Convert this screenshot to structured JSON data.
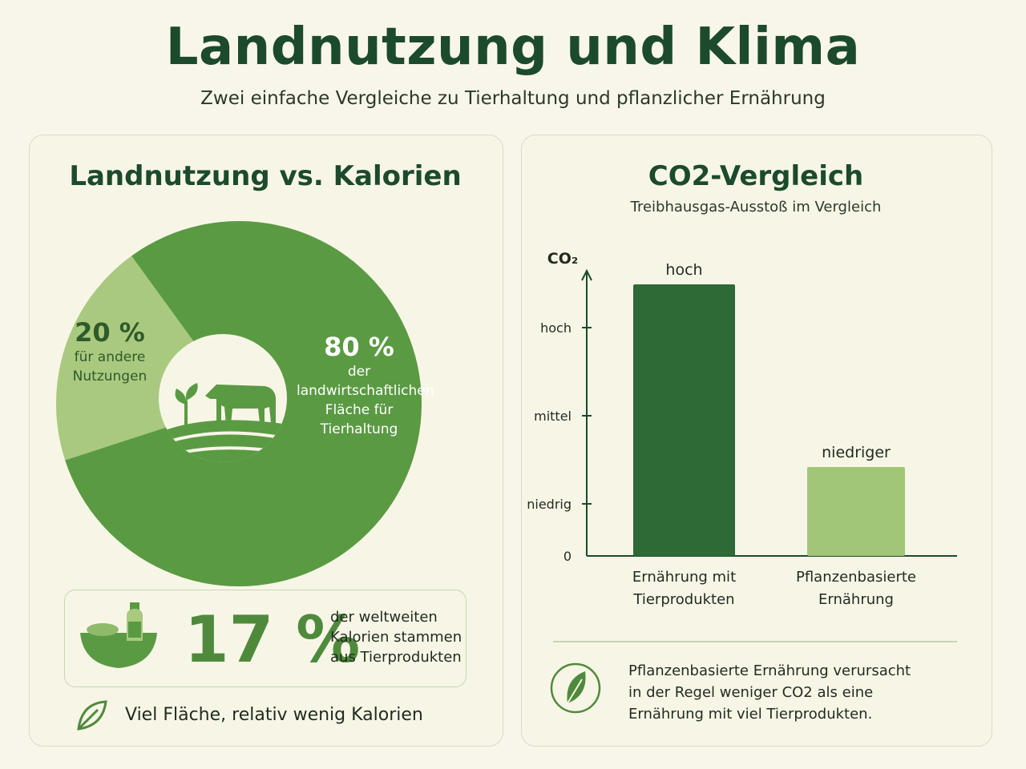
{
  "title": "Landnutzung und Klima",
  "subtitle": "Zwei einfache Vergleiche zu Tierhaltung und pflanzlicher Ernährung",
  "left": {
    "title": "Landnutzung vs. Kalorien",
    "slice_other": {
      "pct": "20 %",
      "label": "für andere Nutzungen"
    },
    "slice_livestock": {
      "pct": "80 %",
      "label": "der landwirtschaftlichen Fläche für Tierhaltung"
    },
    "stat": {
      "value": "17 %",
      "text": "der weltweiten Kalorien stammen aus Tierprodukten"
    },
    "footer": "Viel Fläche, relativ wenig Kalorien"
  },
  "right": {
    "title": "CO2-Vergleich",
    "subtitle": "Treibhausgas-Ausstoß im Vergleich",
    "y_axis_label": "CO₂",
    "note": "Pflanzenbasierte Ernährung verursacht in der Regel weniger CO2 als eine Ernährung mit viel Tierprodukten."
  },
  "colors": {
    "dark_green": "#1c4a2c",
    "main_green": "#5a9a43",
    "light_green": "#a9c97f",
    "bar_dark": "#2d6a35",
    "bar_light": "#a2c677",
    "background": "#f8f6ea"
  },
  "chart_data": [
    {
      "type": "pie",
      "title": "Landnutzung vs. Kalorien",
      "categories": [
        "Tierhaltung",
        "andere Nutzungen"
      ],
      "values": [
        80,
        20
      ],
      "labels": [
        "80 % der landwirtschaftlichen Fläche für Tierhaltung",
        "20 % für andere Nutzungen"
      ]
    },
    {
      "type": "bar",
      "title": "CO2-Vergleich",
      "subtitle": "Treibhausgas-Ausstoß im Vergleich",
      "ylabel": "CO₂",
      "y_ticks": [
        {
          "label": "0",
          "value": 0
        },
        {
          "label": "niedrig",
          "value": 1
        },
        {
          "label": "mittel",
          "value": 2
        },
        {
          "label": "hoch",
          "value": 3
        }
      ],
      "ylim": [
        0,
        3.6
      ],
      "categories": [
        "Ernährung mit Tierprodukten",
        "Pflanzenbasierte Ernährung"
      ],
      "category_lines": [
        [
          "Ernährung mit",
          "Tierprodukten"
        ],
        [
          "Pflanzenbasierte",
          "Ernährung"
        ]
      ],
      "values": [
        3.5,
        1.4
      ],
      "data_labels": [
        "hoch",
        "niedriger"
      ]
    }
  ]
}
